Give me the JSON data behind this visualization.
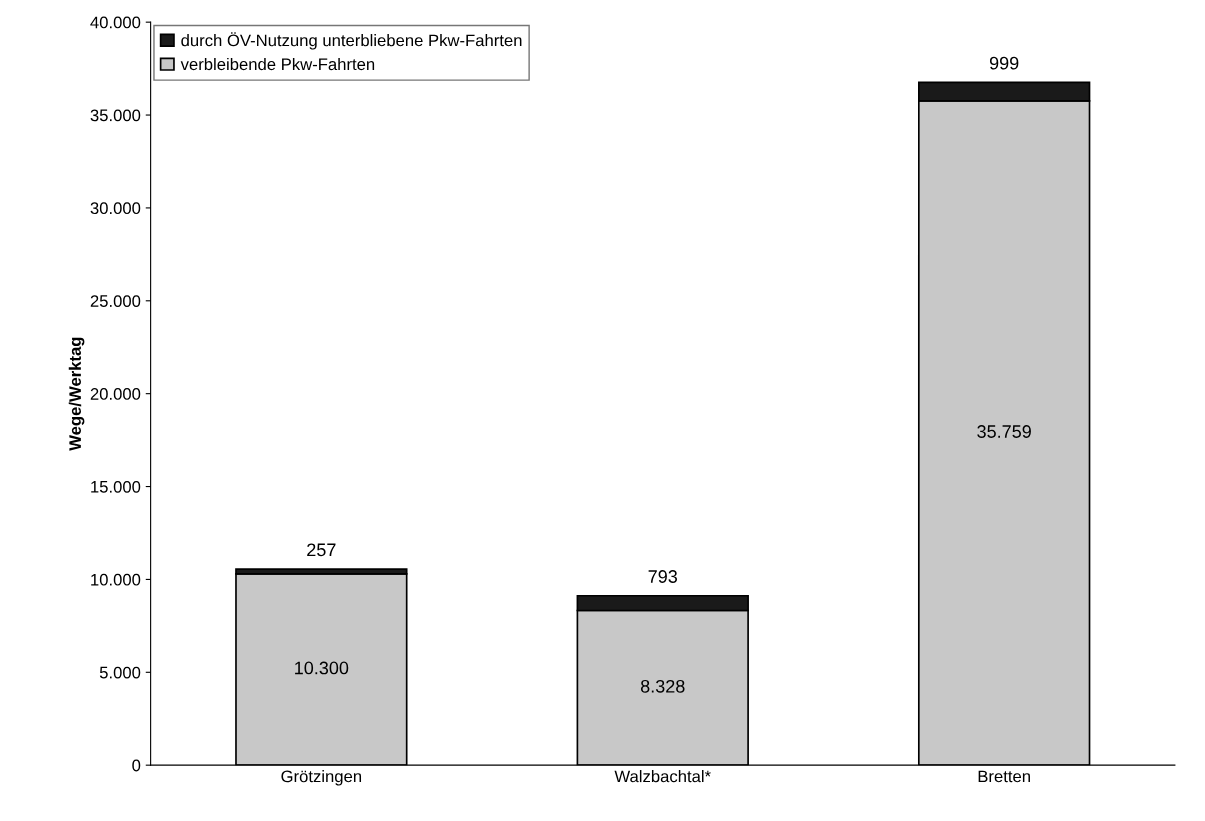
{
  "chart_data": {
    "type": "bar",
    "stacked": true,
    "ylabel": "Wege/Werktag",
    "categories": [
      "Grötzingen",
      "Walzbachtal*",
      "Bretten"
    ],
    "series": [
      {
        "name": "verbleibende Pkw-Fahrten",
        "color": "#c8c8c8",
        "values": [
          10300,
          8328,
          35759
        ],
        "value_labels": [
          "10.300",
          "8.328",
          "35.759"
        ]
      },
      {
        "name": "durch ÖV-Nutzung unterbliebene Pkw-Fahrten",
        "color": "#1a1a1a",
        "values": [
          257,
          793,
          999
        ],
        "value_labels": [
          "257",
          "793",
          "999"
        ]
      }
    ],
    "ylim": [
      0,
      40000
    ],
    "yticks": [
      {
        "value": 0,
        "label": "0"
      },
      {
        "value": 5000,
        "label": "5.000"
      },
      {
        "value": 10000,
        "label": "10.000"
      },
      {
        "value": 15000,
        "label": "15.000"
      },
      {
        "value": 20000,
        "label": "20.000"
      },
      {
        "value": 25000,
        "label": "25.000"
      },
      {
        "value": 30000,
        "label": "30.000"
      },
      {
        "value": 35000,
        "label": "35.000"
      },
      {
        "value": 40000,
        "label": "40.000"
      }
    ],
    "grid": false,
    "legend": "top left"
  }
}
